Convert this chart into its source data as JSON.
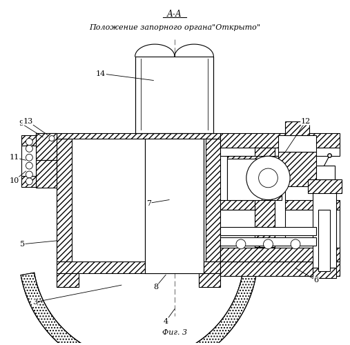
{
  "title_aa": "А-А",
  "title_main": "Положение запорного органа\"Открыто\"",
  "fig_label": "Фиг. 3",
  "bg_color": "#ffffff",
  "line_color": "#000000"
}
